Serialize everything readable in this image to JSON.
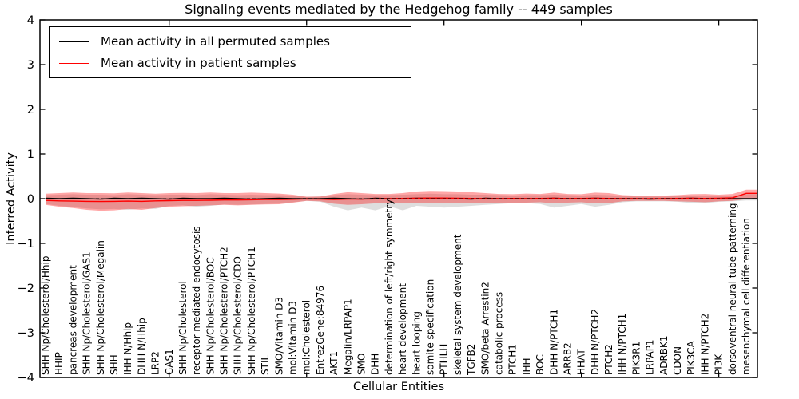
{
  "title": "Signaling events mediated by the Hedgehog family -- 449 samples",
  "legend": {
    "items": [
      {
        "label": "Mean activity in all permuted samples",
        "color": "#000000"
      },
      {
        "label": "Mean activity in patient samples",
        "color": "#ff0000"
      }
    ]
  },
  "chart_data": {
    "type": "line",
    "title": "Signaling events mediated by the Hedgehog family -- 449 samples",
    "xlabel": "Cellular Entities",
    "ylabel": "Inferred Activity",
    "ylim": [
      -4,
      4
    ],
    "yticks": [
      4,
      3,
      2,
      1,
      0,
      -1,
      -2,
      -3,
      -4
    ],
    "grid": false,
    "legend_position": "upper left",
    "zero_line": {
      "y": 0,
      "style": "dashed",
      "color": "#000000"
    },
    "x_major_tick_indices": [
      9,
      19,
      29,
      39,
      49
    ],
    "categories": [
      "SHH Np/Cholesterol/Hhip",
      "HHIP",
      "pancreas development",
      "SHH Np/Cholesterol/GAS1",
      "SHH Np/Cholesterol/Megalin",
      "SHH",
      "IHH N/Hhip",
      "DHH N/Hhip",
      "LRP2",
      "GAS1",
      "SHH Np/Cholesterol",
      "receptor-mediated endocytosis",
      "SHH Np/Cholesterol/BOC",
      "SHH Np/Cholesterol/PTCH2",
      "SHH Np/Cholesterol/CDO",
      "SHH Np/Cholesterol/PTCH1",
      "STIL",
      "SMO/Vitamin D3",
      "mol:Vitamin D3",
      "mol:Cholesterol",
      "EntrezGene:84976",
      "AKT1",
      "Megalin/LRPAP1",
      "SMO",
      "DHH",
      "determination of left/right symmetry",
      "heart development",
      "heart looping",
      "somite specification",
      "PTHLH",
      "skeletal system development",
      "TGFB2",
      "SMO/beta Arrestin2",
      "catabolic process",
      "PTCH1",
      "IHH",
      "BOC",
      "DHH N/PTCH1",
      "ARRB2",
      "HHAT",
      "DHH N/PTCH2",
      "PTCH2",
      "IHH N/PTCH1",
      "PIK3R1",
      "LRPAP1",
      "ADRBK1",
      "CDON",
      "PIK3CA",
      "IHH N/PTCH2",
      "PI3K",
      "dorsoventral neural tube patterning",
      "mesenchymal cell differentiation"
    ],
    "series": [
      {
        "name": "Mean activity in all permuted samples",
        "color": "#000000",
        "band_alpha": 0.13,
        "values": [
          0.01,
          0.0,
          0.01,
          0.0,
          -0.01,
          0.01,
          0.0,
          0.01,
          0.0,
          -0.01,
          0.01,
          0.0,
          0.0,
          0.01,
          0.0,
          -0.01,
          0.0,
          0.01,
          0.0,
          0.0,
          0.0,
          0.01,
          0.0,
          -0.01,
          0.01,
          0.0,
          0.0,
          0.01,
          0.01,
          0.0,
          0.0,
          -0.01,
          0.01,
          0.0,
          0.0,
          0.0,
          0.0,
          0.01,
          0.0,
          0.0,
          0.01,
          0.0,
          0.0,
          0.0,
          -0.01,
          0.0,
          0.0,
          0.01,
          0.0,
          0.0,
          0.0,
          0.0
        ],
        "band_upper": [
          0.08,
          0.09,
          0.1,
          0.09,
          0.09,
          0.08,
          0.1,
          0.09,
          0.08,
          0.09,
          0.09,
          0.08,
          0.1,
          0.09,
          0.08,
          0.09,
          0.08,
          0.08,
          0.07,
          0.04,
          0.05,
          0.08,
          0.1,
          0.09,
          0.08,
          0.08,
          0.09,
          0.1,
          0.11,
          0.1,
          0.1,
          0.09,
          0.09,
          0.08,
          0.07,
          0.08,
          0.08,
          0.09,
          0.08,
          0.07,
          0.09,
          0.08,
          0.06,
          0.05,
          0.05,
          0.05,
          0.06,
          0.07,
          0.07,
          0.06,
          0.07,
          0.1
        ],
        "band_lower": [
          -0.12,
          -0.16,
          -0.19,
          -0.22,
          -0.24,
          -0.23,
          -0.25,
          -0.22,
          -0.23,
          -0.16,
          -0.15,
          -0.18,
          -0.16,
          -0.13,
          -0.14,
          -0.13,
          -0.12,
          -0.11,
          -0.08,
          -0.05,
          -0.07,
          -0.18,
          -0.26,
          -0.2,
          -0.26,
          -0.17,
          -0.26,
          -0.16,
          -0.18,
          -0.2,
          -0.18,
          -0.16,
          -0.14,
          -0.12,
          -0.1,
          -0.1,
          -0.12,
          -0.2,
          -0.16,
          -0.12,
          -0.18,
          -0.14,
          -0.08,
          -0.06,
          -0.06,
          -0.06,
          -0.07,
          -0.1,
          -0.1,
          -0.07,
          -0.06,
          -0.04
        ]
      },
      {
        "name": "Mean activity in patient samples",
        "color": "#ff0000",
        "band_alpha": 0.35,
        "values": [
          -0.04,
          -0.05,
          -0.055,
          -0.06,
          -0.065,
          -0.06,
          -0.055,
          -0.06,
          -0.05,
          -0.045,
          -0.04,
          -0.04,
          -0.035,
          -0.03,
          -0.03,
          -0.025,
          -0.02,
          -0.02,
          -0.015,
          -0.005,
          -0.01,
          -0.02,
          -0.01,
          -0.01,
          -0.005,
          0.0,
          0.005,
          0.01,
          0.015,
          0.015,
          0.01,
          0.005,
          0.0,
          0.0,
          0.005,
          0.0,
          0.005,
          0.01,
          0.0,
          0.005,
          0.01,
          0.005,
          0.0,
          0.0,
          0.0,
          0.0,
          0.005,
          0.01,
          0.005,
          0.01,
          0.02,
          0.12
        ],
        "band_upper": [
          0.11,
          0.125,
          0.14,
          0.125,
          0.125,
          0.12,
          0.14,
          0.125,
          0.11,
          0.125,
          0.13,
          0.125,
          0.14,
          0.125,
          0.125,
          0.135,
          0.125,
          0.115,
          0.09,
          0.045,
          0.05,
          0.105,
          0.145,
          0.125,
          0.105,
          0.105,
          0.125,
          0.16,
          0.175,
          0.17,
          0.16,
          0.145,
          0.125,
          0.105,
          0.1,
          0.115,
          0.105,
          0.135,
          0.105,
          0.1,
          0.135,
          0.125,
          0.08,
          0.07,
          0.07,
          0.07,
          0.08,
          0.1,
          0.105,
          0.09,
          0.105,
          0.2
        ],
        "band_lower": [
          -0.14,
          -0.18,
          -0.21,
          -0.25,
          -0.27,
          -0.26,
          -0.23,
          -0.25,
          -0.21,
          -0.18,
          -0.17,
          -0.16,
          -0.15,
          -0.14,
          -0.15,
          -0.14,
          -0.13,
          -0.125,
          -0.09,
          -0.05,
          -0.06,
          -0.115,
          -0.14,
          -0.125,
          -0.105,
          -0.1,
          -0.105,
          -0.1,
          -0.09,
          -0.09,
          -0.1,
          -0.105,
          -0.105,
          -0.1,
          -0.09,
          -0.09,
          -0.08,
          -0.105,
          -0.09,
          -0.08,
          -0.105,
          -0.1,
          -0.06,
          -0.05,
          -0.05,
          -0.05,
          -0.06,
          -0.07,
          -0.08,
          -0.06,
          -0.05,
          -0.01
        ]
      }
    ]
  }
}
